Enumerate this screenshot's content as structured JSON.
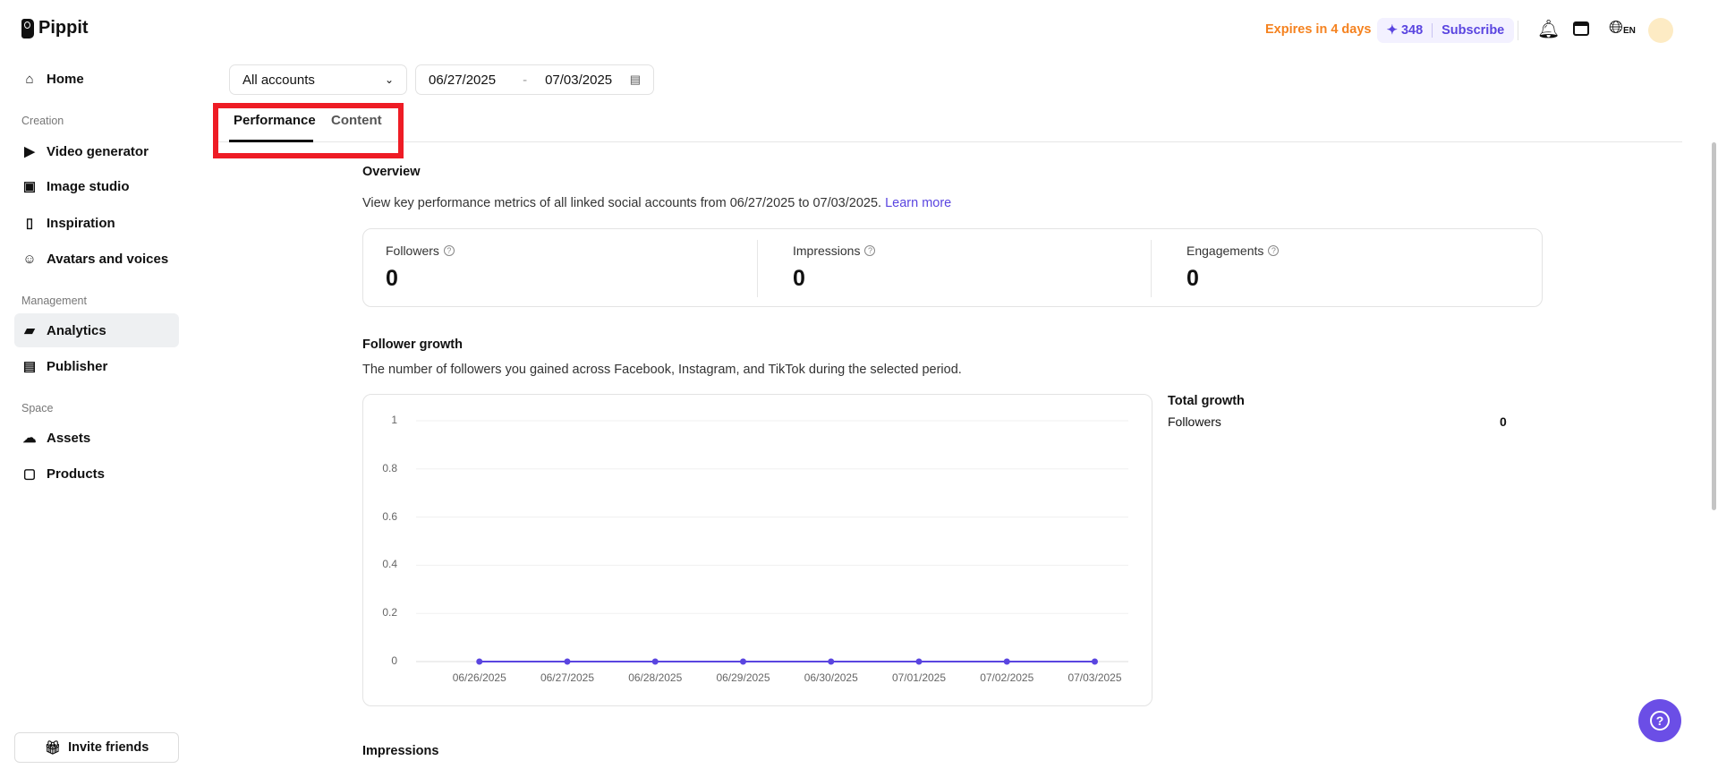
{
  "brand": {
    "name": "Pippit"
  },
  "header": {
    "expires": "Expires in 4 days",
    "credits": "348",
    "subscribe": "Subscribe",
    "language": "EN",
    "accent": "#5a45e0",
    "expires_color": "#f5821f"
  },
  "sidebar": {
    "home": "Home",
    "sections": [
      "Creation",
      "Management",
      "Space"
    ],
    "creation": [
      "Video generator",
      "Image studio",
      "Inspiration",
      "Avatars and voices"
    ],
    "management": [
      "Analytics",
      "Publisher"
    ],
    "space": [
      "Assets",
      "Products"
    ],
    "invite": "Invite friends"
  },
  "filters": {
    "account": "All accounts",
    "date_from": "06/27/2025",
    "date_sep": "-",
    "date_to": "07/03/2025"
  },
  "tabs": [
    {
      "label": "Performance",
      "active": true
    },
    {
      "label": "Content",
      "active": false
    }
  ],
  "overview": {
    "title": "Overview",
    "desc": "View key performance metrics of all linked social accounts from 06/27/2025 to 07/03/2025.",
    "link": "Learn more",
    "metrics": [
      {
        "label": "Followers",
        "value": "0"
      },
      {
        "label": "Impressions",
        "value": "0"
      },
      {
        "label": "Engagements",
        "value": "0"
      }
    ]
  },
  "follower_growth": {
    "title": "Follower growth",
    "desc": "The number of followers you gained across Facebook, Instagram, and TikTok during the selected period.",
    "total_title": "Total growth",
    "total_label": "Followers",
    "total_value": "0"
  },
  "chart_data": {
    "type": "line",
    "x": [
      "06/26/2025",
      "06/27/2025",
      "06/28/2025",
      "06/29/2025",
      "06/30/2025",
      "07/01/2025",
      "07/02/2025",
      "07/03/2025"
    ],
    "values": [
      0,
      0,
      0,
      0,
      0,
      0,
      0,
      0
    ],
    "yticks": [
      "0",
      "0.2",
      "0.4",
      "0.6",
      "0.8",
      "1"
    ],
    "ylim": [
      0,
      1
    ],
    "grid": true,
    "color": "#5a45e0"
  },
  "impressions": {
    "title": "Impressions"
  }
}
